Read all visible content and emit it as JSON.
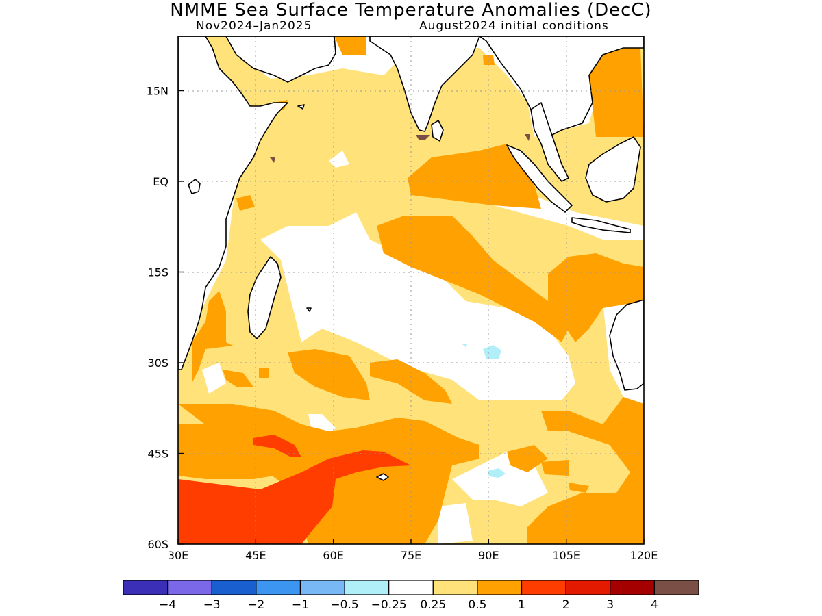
{
  "title": "NMME Sea Surface Temperature Anomalies (DecC)",
  "subtitle_left": "Nov2024–Jan2025",
  "subtitle_right": "August2024 initial conditions",
  "axes": {
    "lon_ticks": [
      "30E",
      "45E",
      "60E",
      "75E",
      "90E",
      "105E",
      "120E"
    ],
    "lat_ticks": [
      "15N",
      "EQ",
      "15S",
      "30S",
      "45S",
      "60S"
    ],
    "lon_range": [
      30,
      120
    ],
    "lat_range": [
      -60,
      24
    ],
    "grid": "dotted"
  },
  "colorbar": {
    "colors": [
      "#3a2fb6",
      "#7b68e8",
      "#1a5fd0",
      "#3d95f2",
      "#78b8f5",
      "#b0eef8",
      "#ffffff",
      "#ffe27a",
      "#ffa100",
      "#ff3d00",
      "#e31a00",
      "#a50000",
      "#7a4f45"
    ],
    "labels": [
      "−4",
      "−3",
      "−2",
      "−1",
      "−0.5",
      "−0.25",
      "0.25",
      "0.5",
      "1",
      "2",
      "3",
      "4"
    ]
  },
  "chart_data": {
    "type": "heatmap",
    "title": "NMME Sea Surface Temperature Anomalies (DecC)",
    "region": "Indian Ocean",
    "xlabel": "",
    "ylabel": "",
    "xlim": [
      30,
      120
    ],
    "ylim": [
      -60,
      24
    ],
    "legend_placement": "bottom",
    "levels": [
      -4,
      -3,
      -2,
      -1,
      -0.5,
      -0.25,
      0.25,
      0.5,
      1,
      2,
      3,
      4
    ],
    "features": [
      {
        "region": "Arabian Sea / Bay of Bengal",
        "anomaly_range": "0.25 to 0.5"
      },
      {
        "region": "Southeast tropical Indian Ocean near Sumatra",
        "anomaly_range": "0.5 to 1"
      },
      {
        "region": "South China Sea",
        "anomaly_range": "0.5 to 1"
      },
      {
        "region": "Central southern Indian Ocean 20S-35S",
        "anomaly_range": "-0.25 to 0.25"
      },
      {
        "region": "Southwest Indian Ocean 45S-60S",
        "anomaly_range": "1 to 2"
      },
      {
        "region": "Southern Ocean 40S-60S",
        "anomaly_range": "0.5 to 1"
      }
    ]
  }
}
